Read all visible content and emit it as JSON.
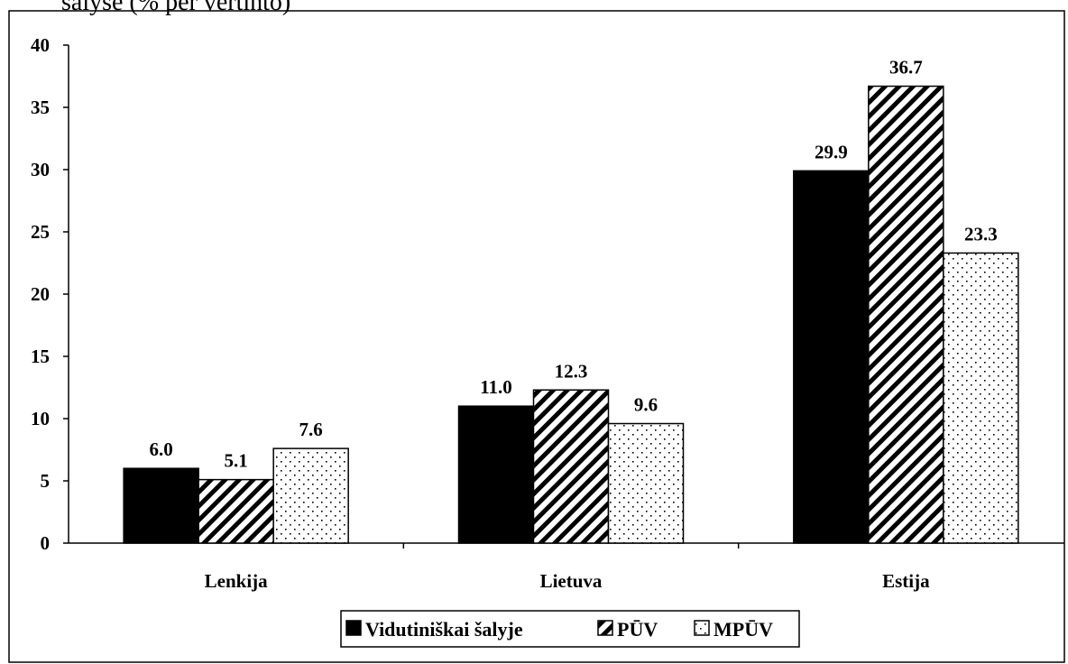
{
  "caption": "šalyse (% per vertinto)",
  "chart_data": {
    "type": "bar",
    "categories": [
      "Lenkija",
      "Lietuva",
      "Estija"
    ],
    "series": [
      {
        "name": "Vidutiniškai šalyje",
        "values": [
          6.0,
          11.0,
          29.9
        ],
        "labels": [
          "6.0",
          "11.0",
          "29.9"
        ],
        "pattern": "solid"
      },
      {
        "name": "PŪV",
        "values": [
          5.1,
          12.3,
          36.7
        ],
        "labels": [
          "5.1",
          "12.3",
          "36.7"
        ],
        "pattern": "diagonal-hatch"
      },
      {
        "name": "MPŪV",
        "values": [
          7.6,
          9.6,
          23.3
        ],
        "labels": [
          "7.6",
          "9.6",
          "23.3"
        ],
        "pattern": "dots"
      }
    ],
    "ylim": [
      0,
      40
    ],
    "yticks": [
      "0",
      "5",
      "10",
      "15",
      "20",
      "25",
      "30",
      "35",
      "40"
    ],
    "title": "",
    "xlabel": "",
    "ylabel": "",
    "legend_position": "bottom-center",
    "grid": false,
    "colors": {
      "bar_fill": "#000000",
      "background": "#ffffff",
      "stroke": "#000000"
    }
  }
}
